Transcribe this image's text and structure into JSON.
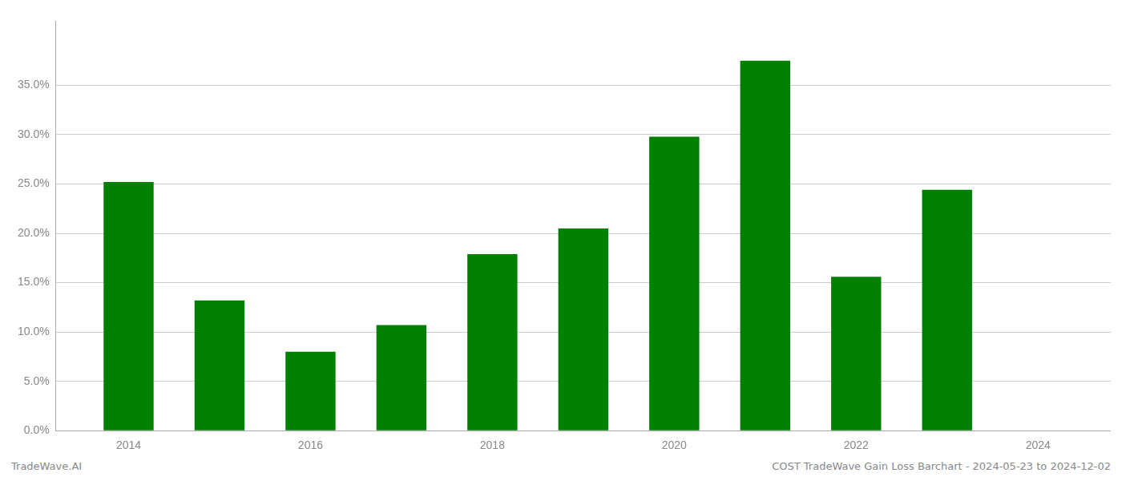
{
  "chart_data": {
    "type": "bar",
    "x": [
      2014,
      2015,
      2016,
      2017,
      2018,
      2019,
      2020,
      2021,
      2022,
      2023
    ],
    "values": [
      0.252,
      0.132,
      0.08,
      0.107,
      0.179,
      0.205,
      0.298,
      0.375,
      0.156,
      0.244
    ],
    "color": "#008000",
    "xlim": [
      2013.2,
      2024.8
    ],
    "xticks": [
      2014,
      2016,
      2018,
      2020,
      2022,
      2024
    ],
    "ylim": [
      0,
      0.415
    ],
    "yticks": [
      {
        "value": 0.0,
        "label": "0.0%"
      },
      {
        "value": 0.05,
        "label": "5.0%"
      },
      {
        "value": 0.1,
        "label": "10.0%"
      },
      {
        "value": 0.15,
        "label": "15.0%"
      },
      {
        "value": 0.2,
        "label": "20.0%"
      },
      {
        "value": 0.25,
        "label": "25.0%"
      },
      {
        "value": 0.3,
        "label": "30.0%"
      },
      {
        "value": 0.35,
        "label": "35.0%"
      }
    ],
    "grid": true,
    "annotations": [
      "TradeWave.AI",
      "COST TradeWave Gain Loss Barchart - 2024-05-23 to 2024-12-02"
    ]
  }
}
